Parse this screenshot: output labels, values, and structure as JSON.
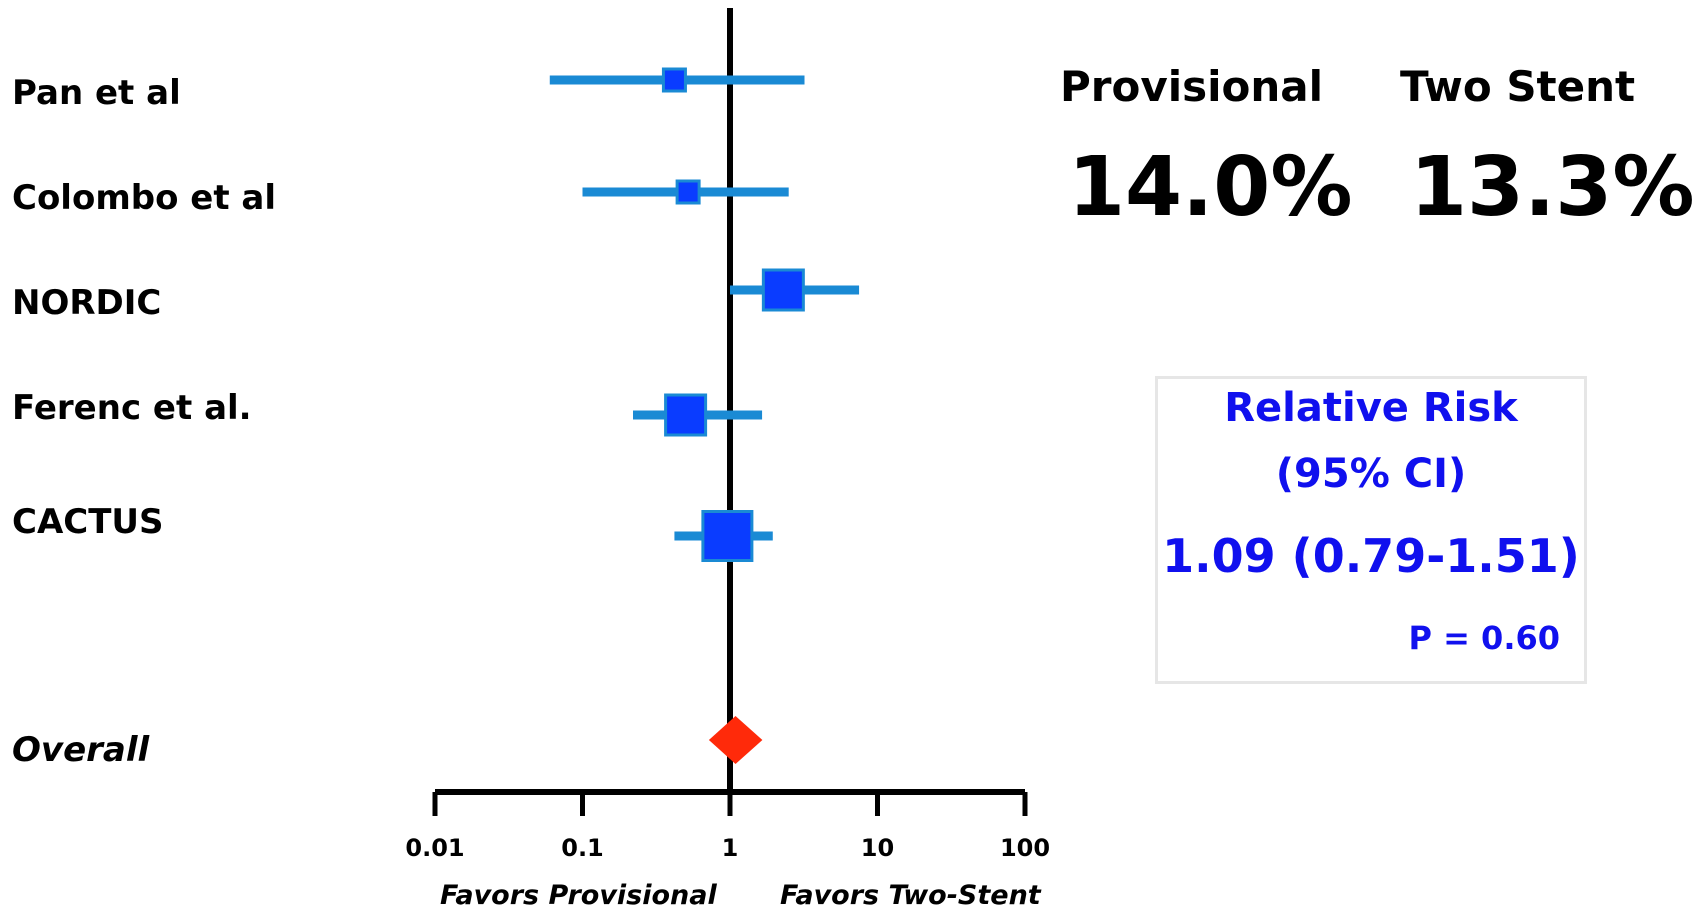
{
  "chart_data": {
    "type": "forest",
    "scale": "log",
    "xlim": [
      0.01,
      100
    ],
    "xticks": [
      "0.01",
      "0.1",
      "1",
      "10",
      "100"
    ],
    "xtick_values": [
      0.01,
      0.1,
      1,
      10,
      100
    ],
    "reference_line": 1,
    "x_left_label": "Favors Provisional",
    "x_right_label": "Favors Two-Stent",
    "studies": [
      {
        "name": "Pan et al",
        "estimate": 0.42,
        "lower": 0.06,
        "upper": 3.2,
        "weight": 1
      },
      {
        "name": "Colombo et al",
        "estimate": 0.52,
        "lower": 0.1,
        "upper": 2.5,
        "weight": 1
      },
      {
        "name": "NORDIC",
        "estimate": 2.3,
        "lower": 1.0,
        "upper": 7.5,
        "weight": 2
      },
      {
        "name": "Ferenc et al.",
        "estimate": 0.5,
        "lower": 0.22,
        "upper": 1.65,
        "weight": 2
      },
      {
        "name": "CACTUS",
        "estimate": 0.96,
        "lower": 0.42,
        "upper": 1.95,
        "weight": 2.5
      }
    ],
    "overall": {
      "name": "Overall",
      "estimate": 1.09,
      "lower": 0.79,
      "upper": 1.51
    },
    "colors": {
      "ci_line": "#1a8ad4",
      "square": "#0a3cff",
      "square_border": "#1a8ad4",
      "diamond": "#ff2a0a",
      "axis": "#000000"
    }
  },
  "groups": [
    {
      "name": "Provisional",
      "rate": "14.0%"
    },
    {
      "name": "Two Stent",
      "rate": "13.3%"
    }
  ],
  "summary": {
    "title_line1": "Relative Risk",
    "title_line2": "(95% CI)",
    "value": "1.09 (0.79-1.51)",
    "p_value": "P = 0.60",
    "color": "#1010ee"
  }
}
